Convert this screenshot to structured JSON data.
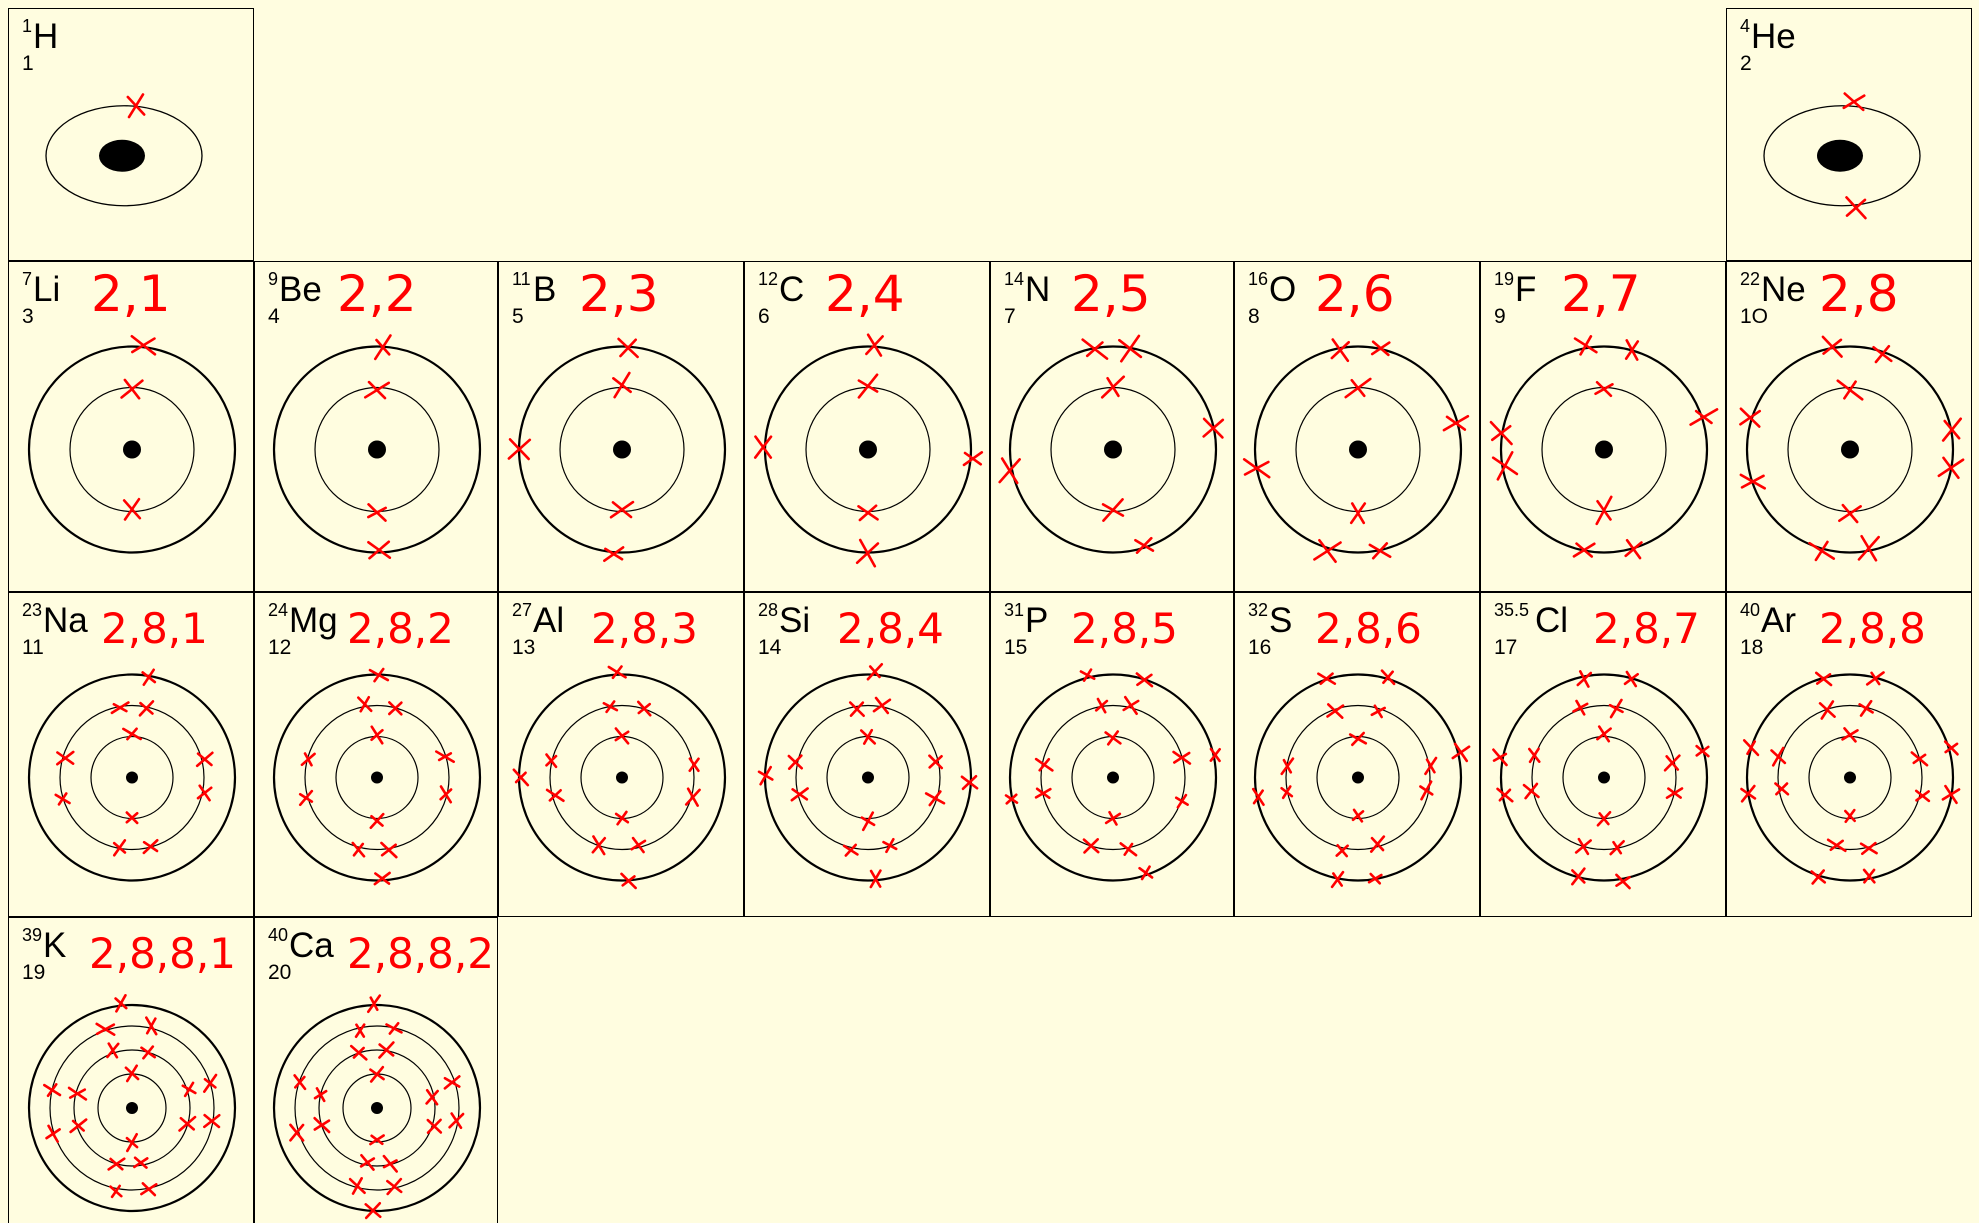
{
  "elements": [
    {
      "mass": "1",
      "symbol": "H",
      "number": "1",
      "config": "",
      "shells": [
        1
      ],
      "row": 0,
      "col": 0
    },
    {
      "mass": "4",
      "symbol": "He",
      "number": "2",
      "config": "",
      "shells": [
        2
      ],
      "row": 0,
      "col": 7
    },
    {
      "mass": "7",
      "symbol": "Li",
      "number": "3",
      "config": "2,1",
      "shells": [
        2,
        1
      ],
      "row": 1,
      "col": 0
    },
    {
      "mass": "9",
      "symbol": "Be",
      "number": "4",
      "config": "2,2",
      "shells": [
        2,
        2
      ],
      "row": 1,
      "col": 1
    },
    {
      "mass": "11",
      "symbol": "B",
      "number": "5",
      "config": "2,3",
      "shells": [
        2,
        3
      ],
      "row": 1,
      "col": 2
    },
    {
      "mass": "12",
      "symbol": "C",
      "number": "6",
      "config": "2,4",
      "shells": [
        2,
        4
      ],
      "row": 1,
      "col": 3
    },
    {
      "mass": "14",
      "symbol": "N",
      "number": "7",
      "config": "2,5",
      "shells": [
        2,
        5
      ],
      "row": 1,
      "col": 4
    },
    {
      "mass": "16",
      "symbol": "O",
      "number": "8",
      "config": "2,6",
      "shells": [
        2,
        6
      ],
      "row": 1,
      "col": 5
    },
    {
      "mass": "19",
      "symbol": "F",
      "number": "9",
      "config": "2,7",
      "shells": [
        2,
        7
      ],
      "row": 1,
      "col": 6
    },
    {
      "mass": "22",
      "symbol": "Ne",
      "number": "1O",
      "config": "2,8",
      "shells": [
        2,
        8
      ],
      "row": 1,
      "col": 7
    },
    {
      "mass": "23",
      "symbol": "Na",
      "number": "11",
      "config": "2,8,1",
      "shells": [
        2,
        8,
        1
      ],
      "row": 2,
      "col": 0
    },
    {
      "mass": "24",
      "symbol": "Mg",
      "number": "12",
      "config": "2,8,2",
      "shells": [
        2,
        8,
        2
      ],
      "row": 2,
      "col": 1
    },
    {
      "mass": "27",
      "symbol": "Al",
      "number": "13",
      "config": "2,8,3",
      "shells": [
        2,
        8,
        3
      ],
      "row": 2,
      "col": 2
    },
    {
      "mass": "28",
      "symbol": "Si",
      "number": "14",
      "config": "2,8,4",
      "shells": [
        2,
        8,
        4
      ],
      "row": 2,
      "col": 3
    },
    {
      "mass": "31",
      "symbol": "P",
      "number": "15",
      "config": "2,8,5",
      "shells": [
        2,
        8,
        5
      ],
      "row": 2,
      "col": 4
    },
    {
      "mass": "32",
      "symbol": "S",
      "number": "16",
      "config": "2,8,6",
      "shells": [
        2,
        8,
        6
      ],
      "row": 2,
      "col": 5
    },
    {
      "mass": "35.5",
      "symbol": "Cl",
      "number": "17",
      "config": "2,8,7",
      "shells": [
        2,
        8,
        7
      ],
      "row": 2,
      "col": 6
    },
    {
      "mass": "40",
      "symbol": "Ar",
      "number": "18",
      "config": "2,8,8",
      "shells": [
        2,
        8,
        8
      ],
      "row": 2,
      "col": 7
    },
    {
      "mass": "39",
      "symbol": "K",
      "number": "19",
      "config": "2,8,8,1",
      "shells": [
        2,
        8,
        8,
        1
      ],
      "row": 3,
      "col": 0
    },
    {
      "mass": "40",
      "symbol": "Ca",
      "number": "20",
      "config": "2,8,8,2",
      "shells": [
        2,
        8,
        8,
        2
      ],
      "row": 3,
      "col": 1
    }
  ],
  "colors": {
    "background": "#fffde0",
    "ink": "#000000",
    "annotation": "#ff0000"
  }
}
